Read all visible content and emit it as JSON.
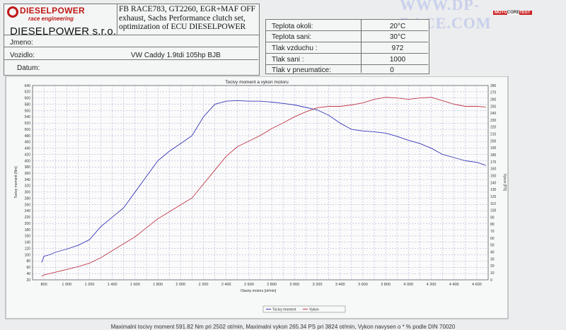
{
  "brand": {
    "logo_text": "DIESELPOWER",
    "logo_tagline": "race engineering",
    "company": "DIESELPOWER s.r.o.",
    "watermark": "WWW.DP-RACE.COM",
    "badge_left": "MOTO",
    "badge_mid": "CORE",
    "badge_right": "TEST"
  },
  "description": [
    "FB RACE783, GT2260, EGR+MAF OFF",
    "exhaust, Sachs Performance clutch set,",
    "optimization of ECU DIESELPOWER"
  ],
  "customer": {
    "jmeno_label": "Jmeno:",
    "jmeno_value": "",
    "vozidlo_label": "Vozidlo:",
    "vozidlo_value": "VW Caddy 1.9tdi 105hp BJB",
    "datum_label": "Datum:",
    "datum_value": ""
  },
  "conditions": [
    {
      "label": "Teplota okoli:",
      "value": "20°C"
    },
    {
      "label": "Teplota sani:",
      "value": "30°C"
    },
    {
      "label": "Tlak vzduchu :",
      "value": "972"
    },
    {
      "label": "Tlak sani :",
      "value": "1000"
    },
    {
      "label": "Tlak v pneumatice:",
      "value": "0"
    }
  ],
  "footer": "Maximalni tocivy moment 591.82 Nm pri 2502 ot/min,  Maximalni vykon 265.34 PS pri 3824 ot/min,  Vykon navysen o * % podle DIN 70020",
  "chart_data": {
    "type": "line",
    "title": "Tocivy moment a vykon motoru",
    "xlabel": "Otacky motoru [ot/min]",
    "ylabel_left": "Tocivy moment [Nm]",
    "ylabel_right": "Vykon [PS]",
    "xlim": [
      700,
      4700
    ],
    "ylim_left": [
      20,
      640
    ],
    "ylim_right": [
      0,
      280
    ],
    "x_ticks": [
      "800",
      "1 000",
      "1 200",
      "1 400",
      "1 600",
      "1 800",
      "2 000",
      "2 200",
      "2 400",
      "2 600",
      "2 800",
      "3 000",
      "3 200",
      "3 400",
      "3 600",
      "3 800",
      "4 000",
      "4 200",
      "4 400",
      "4 600"
    ],
    "x_tick_values": [
      800,
      1000,
      1200,
      1400,
      1600,
      1800,
      2000,
      2200,
      2400,
      2600,
      2800,
      3000,
      3200,
      3400,
      3600,
      3800,
      4000,
      4200,
      4400,
      4600
    ],
    "grid": true,
    "legend_position": "bottom-center",
    "series": [
      {
        "name": "Tocivy moment",
        "axis": "left",
        "color": "#3838b8",
        "x": [
          780,
          800,
          850,
          900,
          1000,
          1100,
          1200,
          1300,
          1400,
          1500,
          1600,
          1700,
          1800,
          1900,
          2000,
          2100,
          2200,
          2300,
          2400,
          2500,
          2600,
          2700,
          2800,
          2900,
          3000,
          3100,
          3200,
          3300,
          3400,
          3500,
          3600,
          3700,
          3800,
          3900,
          4000,
          4100,
          4200,
          4300,
          4400,
          4500,
          4600,
          4680
        ],
        "y": [
          75,
          95,
          100,
          108,
          118,
          130,
          148,
          190,
          220,
          250,
          300,
          350,
          400,
          430,
          455,
          480,
          540,
          580,
          590,
          592,
          590,
          590,
          587,
          583,
          578,
          570,
          562,
          545,
          520,
          500,
          495,
          492,
          488,
          478,
          465,
          455,
          440,
          420,
          410,
          400,
          395,
          385
        ]
      },
      {
        "name": "Vykon",
        "axis": "right",
        "color": "#c03848",
        "x": [
          780,
          800,
          900,
          1000,
          1100,
          1200,
          1300,
          1400,
          1500,
          1600,
          1700,
          1800,
          1900,
          2000,
          2100,
          2200,
          2300,
          2400,
          2500,
          2600,
          2700,
          2800,
          2900,
          3000,
          3100,
          3200,
          3300,
          3400,
          3500,
          3600,
          3700,
          3800,
          3900,
          4000,
          4100,
          4200,
          4300,
          4400,
          4500,
          4600,
          4680
        ],
        "y": [
          5,
          7,
          11,
          15,
          19,
          24,
          32,
          42,
          52,
          62,
          75,
          88,
          98,
          108,
          118,
          138,
          158,
          178,
          192,
          200,
          208,
          218,
          226,
          235,
          242,
          248,
          250,
          250,
          252,
          255,
          260,
          263,
          262,
          260,
          262,
          263,
          258,
          253,
          250,
          250,
          249
        ]
      }
    ]
  }
}
